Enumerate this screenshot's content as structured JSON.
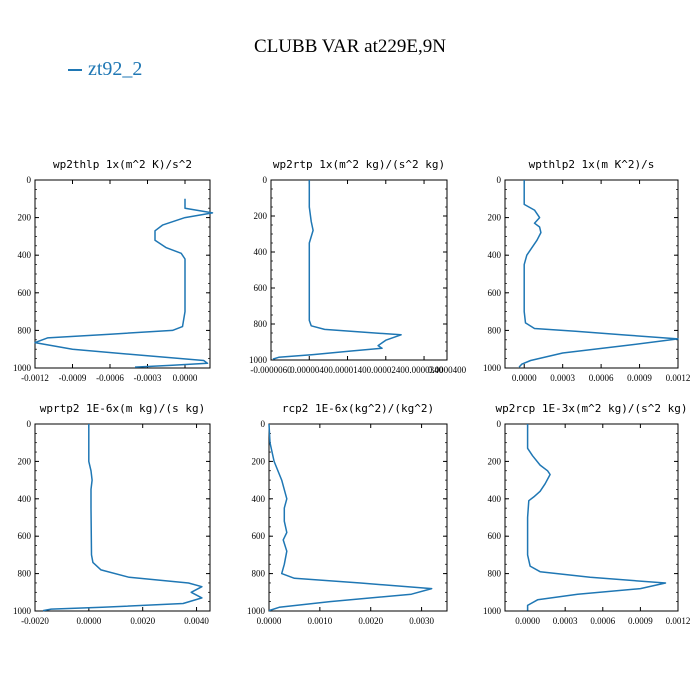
{
  "title": "CLUBB VAR at229E,9N",
  "legend": {
    "label": "zt92_2",
    "color": "#1f77b4"
  },
  "chart_data": [
    {
      "type": "line",
      "title": "wp2thlp   1x(m^2 K)/s^2",
      "xlim": [
        -0.0012,
        0.0002
      ],
      "ylim": [
        1000,
        0
      ],
      "xticks": [
        -0.0012,
        -0.0009,
        -0.0006,
        -0.0003,
        0.0
      ],
      "xtick_labels": [
        "-0.0012",
        "-0.0009",
        "-0.0006",
        "-0.0003",
        "0.0000"
      ],
      "yticks": [
        0,
        200,
        400,
        600,
        800,
        1000
      ],
      "series": [
        {
          "color": "#1f77b4",
          "x": [
            0.0,
            0.0,
            0.00022,
            0.0,
            -0.00018,
            -0.00024,
            -0.00024,
            -0.00015,
            -3e-05,
            0.0,
            0.0,
            0.0,
            -2e-05,
            -0.0001,
            -0.0006,
            -0.0011,
            -0.0012,
            -0.0009,
            -0.0003,
            0.00015,
            0.00018,
            -0.0001,
            -0.0004
          ],
          "y": [
            100,
            150,
            175,
            200,
            240,
            270,
            320,
            360,
            390,
            420,
            500,
            700,
            780,
            800,
            820,
            840,
            865,
            900,
            935,
            960,
            975,
            985,
            995
          ]
        }
      ]
    },
    {
      "type": "line",
      "title": "wp2rtp   1x(m^2 kg)/(s^2 kg)",
      "xlim": [
        -6e-06,
        4e-05
      ],
      "ylim": [
        1000,
        0
      ],
      "xticks": [
        -6e-06,
        4e-06,
        1.4e-05,
        2.4e-05,
        3.4e-05,
        4e-05
      ],
      "xtick_labels": [
        "-0.0000060",
        "0.0000040",
        "0.0000140",
        "0.0000240",
        "0.0000340",
        "0.0000400"
      ],
      "yticks": [
        0,
        200,
        400,
        600,
        800,
        1000
      ],
      "series": [
        {
          "color": "#1f77b4",
          "x": [
            4e-06,
            4e-06,
            4.5e-06,
            5e-06,
            4e-06,
            4e-06,
            4e-06,
            4e-06,
            4.5e-06,
            8e-06,
            1.8e-05,
            2.8e-05,
            2.4e-05,
            2.2e-05,
            2.3e-05,
            1.5e-05,
            5e-06,
            -4e-06,
            -5.5e-06
          ],
          "y": [
            0,
            150,
            230,
            280,
            350,
            400,
            600,
            780,
            810,
            830,
            845,
            860,
            890,
            920,
            935,
            950,
            970,
            985,
            995
          ]
        }
      ]
    },
    {
      "type": "line",
      "title": "wpthlp2   1x(m K^2)/s",
      "xlim": [
        -0.00015,
        0.0012
      ],
      "ylim": [
        1000,
        0
      ],
      "xticks": [
        0.0,
        0.0003,
        0.0006,
        0.0009,
        0.0012
      ],
      "xtick_labels": [
        "0.0000",
        "0.0003",
        "0.0006",
        "0.0009",
        "0.0012"
      ],
      "yticks": [
        0,
        200,
        400,
        600,
        800,
        1000
      ],
      "series": [
        {
          "color": "#1f77b4",
          "x": [
            0.0,
            0.0,
            8e-05,
            0.00012,
            8e-05,
            0.00012,
            0.00013,
            0.0001,
            6e-05,
            2e-05,
            0.0,
            0.0,
            1e-05,
            8e-05,
            0.0004,
            0.0008,
            0.0012,
            0.0008,
            0.0003,
            5e-05,
            -2e-05,
            -4e-05
          ],
          "y": [
            0,
            130,
            160,
            200,
            230,
            250,
            280,
            320,
            360,
            400,
            450,
            700,
            760,
            790,
            805,
            825,
            845,
            880,
            920,
            960,
            980,
            995
          ]
        }
      ]
    },
    {
      "type": "line",
      "title": "wprtp2   1E-6x(m kg)/(s kg)",
      "xlim": [
        -0.002,
        0.0045
      ],
      "ylim": [
        1000,
        0
      ],
      "xticks": [
        -0.002,
        0.0,
        0.002,
        0.004
      ],
      "xtick_labels": [
        "-0.0020",
        "0.0000",
        "0.0020",
        "0.0040"
      ],
      "yticks": [
        0,
        200,
        400,
        600,
        800,
        1000
      ],
      "series": [
        {
          "color": "#1f77b4",
          "x": [
            0.0,
            0.0,
            8e-05,
            0.00012,
            8e-05,
            8e-05,
            0.0001,
            0.00015,
            0.00045,
            0.0015,
            0.0037,
            0.0042,
            0.0038,
            0.0042,
            0.0035,
            0.0005,
            -0.0014,
            -0.0017
          ],
          "y": [
            0,
            200,
            250,
            300,
            350,
            450,
            700,
            740,
            780,
            820,
            850,
            870,
            900,
            930,
            960,
            980,
            990,
            998
          ]
        }
      ]
    },
    {
      "type": "line",
      "title": "rcp2   1E-6x(kg^2)/(kg^2)",
      "xlim": [
        0.0,
        0.0035
      ],
      "ylim": [
        1000,
        0
      ],
      "xticks": [
        0.0,
        0.001,
        0.002,
        0.003
      ],
      "xtick_labels": [
        "0.0000",
        "0.0010",
        "0.0020",
        "0.0030"
      ],
      "yticks": [
        0,
        200,
        400,
        600,
        800,
        1000
      ],
      "series": [
        {
          "color": "#1f77b4",
          "x": [
            0.0,
            2e-05,
            0.0001,
            0.00025,
            0.00035,
            0.0003,
            0.0003,
            0.00035,
            0.00028,
            0.00035,
            0.0003,
            0.00025,
            0.0005,
            0.0018,
            0.0032,
            0.0028,
            0.0012,
            0.0002,
            0.0
          ],
          "y": [
            0,
            100,
            200,
            300,
            400,
            450,
            520,
            580,
            620,
            680,
            750,
            800,
            825,
            850,
            880,
            910,
            950,
            980,
            998
          ]
        }
      ]
    },
    {
      "type": "line",
      "title": "wp2rcp   1E-3x(m^2 kg)/(s^2 kg)",
      "xlim": [
        -0.00018,
        0.0012
      ],
      "ylim": [
        1000,
        0
      ],
      "xticks": [
        0.0,
        0.0003,
        0.0006,
        0.0009,
        0.0012
      ],
      "xtick_labels": [
        "0.0000",
        "0.0003",
        "0.0006",
        "0.0009",
        "0.0012"
      ],
      "yticks": [
        0,
        200,
        400,
        600,
        800,
        1000
      ],
      "series": [
        {
          "color": "#1f77b4",
          "x": [
            0.0,
            0.0,
            4e-05,
            0.0001,
            0.00016,
            0.00018,
            0.00014,
            0.0001,
            5e-05,
            1e-05,
            0.0,
            0.0,
            2e-05,
            0.0001,
            0.0005,
            0.0011,
            0.0009,
            0.0004,
            8e-05,
            0.0,
            0.0
          ],
          "y": [
            0,
            130,
            170,
            220,
            250,
            270,
            320,
            360,
            390,
            410,
            500,
            700,
            760,
            790,
            820,
            850,
            880,
            910,
            940,
            970,
            998
          ]
        }
      ]
    }
  ]
}
